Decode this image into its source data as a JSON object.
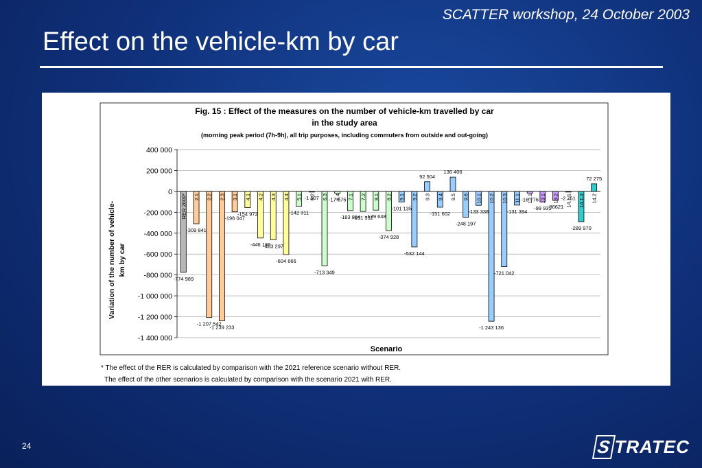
{
  "header": {
    "workshop": "SCATTER workshop, 24 October 2003",
    "title": "Effect on the vehicle-km by car"
  },
  "footer": {
    "page_number": "24",
    "logo_initial": "S",
    "logo_rest": "TRATEC"
  },
  "footnotes": {
    "line1": "* The effect of the RER is calculated by comparison with the 2021 reference scenario without RER.",
    "line2": "The effect of the other scenarios is calculated by comparison with the scenario 2021 with RER."
  },
  "chart_data": {
    "type": "bar",
    "title_line1": "Fig. 15 : Effect of the measures on the number of vehicle-km travelled by car",
    "title_line2": "in the study area",
    "subtitle": "(morning peak period (7h-9h), all trip purposes, including commuters from outside and out-going)",
    "xlabel": "Scenario",
    "ylabel_line1": "Variation of the number of  vehicle-",
    "ylabel_line2": "km by car",
    "ylim": [
      -1400000,
      400000
    ],
    "yticks": [
      400000,
      200000,
      0,
      -200000,
      -400000,
      -600000,
      -800000,
      -1000000,
      -1200000,
      -1400000
    ],
    "ytick_labels": [
      "400 000",
      "200 000",
      "0",
      "-200 000",
      "-400 000",
      "-600 000",
      "-800 000",
      "-1 000 000",
      "-1 200 000",
      "-1 400 000"
    ],
    "grid": true,
    "bars": [
      {
        "category": "RER 2009*",
        "value": -774989,
        "label": "-774 989",
        "color": "#b7b7b7"
      },
      {
        "category": "2.1",
        "value": -309841,
        "label": "-309 841",
        "color": "#ffcc99"
      },
      {
        "category": "2.2",
        "value": -1207542,
        "label": "-1 207 542",
        "color": "#ffcc99"
      },
      {
        "category": "2.3",
        "value": -1239233,
        "label": "-1 239 233",
        "color": "#ffcc99"
      },
      {
        "category": "3.1",
        "value": -196047,
        "label": "-196 047",
        "color": "#ffcc99"
      },
      {
        "category": "4.1",
        "value": -154972,
        "label": "-154 972",
        "color": "#ffff99"
      },
      {
        "category": "4.2",
        "value": -446189,
        "label": "-446 189",
        "color": "#ffff99"
      },
      {
        "category": "4.3",
        "value": -463297,
        "label": "-463 297",
        "color": "#ffff99"
      },
      {
        "category": "4.4",
        "value": -604666,
        "label": "-604 666",
        "color": "#ffff99"
      },
      {
        "category": "5.1",
        "value": -142311,
        "label": "-142 311",
        "color": "#ccffcc"
      },
      {
        "category": "6.2",
        "value": -1507,
        "label": "-1 507",
        "color": "#ccffcc"
      },
      {
        "category": "6.3",
        "value": -713349,
        "label": "-713 349",
        "color": "#ccffcc"
      },
      {
        "category": "6.4",
        "value": -17675,
        "label": "-17 675",
        "color": "#ccffcc"
      },
      {
        "category": "7.1",
        "value": -183884,
        "label": "-183 884",
        "color": "#ccffcc"
      },
      {
        "category": "7.2",
        "value": -191932,
        "label": "-191 932",
        "color": "#ccffcc"
      },
      {
        "category": "8.1",
        "value": -179648,
        "label": "-179 648",
        "color": "#ccffcc"
      },
      {
        "category": "8.2",
        "value": -374928,
        "label": "-374 928",
        "color": "#ccffcc"
      },
      {
        "category": "9.1",
        "value": -101135,
        "label": "-101 135",
        "color": "#99ccff"
      },
      {
        "category": "9.2",
        "value": -532144,
        "label": "-532 144",
        "color": "#99ccff"
      },
      {
        "category": "9.3",
        "value": 92504,
        "label": "92 504",
        "color": "#99ccff"
      },
      {
        "category": "9.4",
        "value": -151602,
        "label": "-151 602",
        "color": "#99ccff"
      },
      {
        "category": "9.5",
        "value": 136406,
        "label": "136 406",
        "color": "#99ccff"
      },
      {
        "category": "9.6",
        "value": -248197,
        "label": "-248 197",
        "color": "#99ccff"
      },
      {
        "category": "10.1",
        "value": -133338,
        "label": "-133 338",
        "color": "#99ccff"
      },
      {
        "category": "10.2",
        "value": -1243136,
        "label": "-1 243 136",
        "color": "#99ccff"
      },
      {
        "category": "10.3",
        "value": -721042,
        "label": "-721 042",
        "color": "#99ccff"
      },
      {
        "category": "11.1",
        "value": -131394,
        "label": "-131 394",
        "color": "#99ccff"
      },
      {
        "category": "12.1",
        "value": -16776,
        "label": "-16 776",
        "color": "#cc99ff"
      },
      {
        "category": "13.1",
        "value": -99931,
        "label": "-99 931",
        "color": "#cc99ff"
      },
      {
        "category": "13.2",
        "value": -86621,
        "label": "-86621",
        "color": "#cc99ff"
      },
      {
        "category": "14.1.1",
        "value": -2751,
        "label": "-2 751",
        "color": "#33cccc"
      },
      {
        "category": "14.1.2",
        "value": -289970,
        "label": "-289 970",
        "color": "#33cccc"
      },
      {
        "category": "14.2",
        "value": 72275,
        "label": "72 275",
        "color": "#33cccc"
      }
    ]
  }
}
